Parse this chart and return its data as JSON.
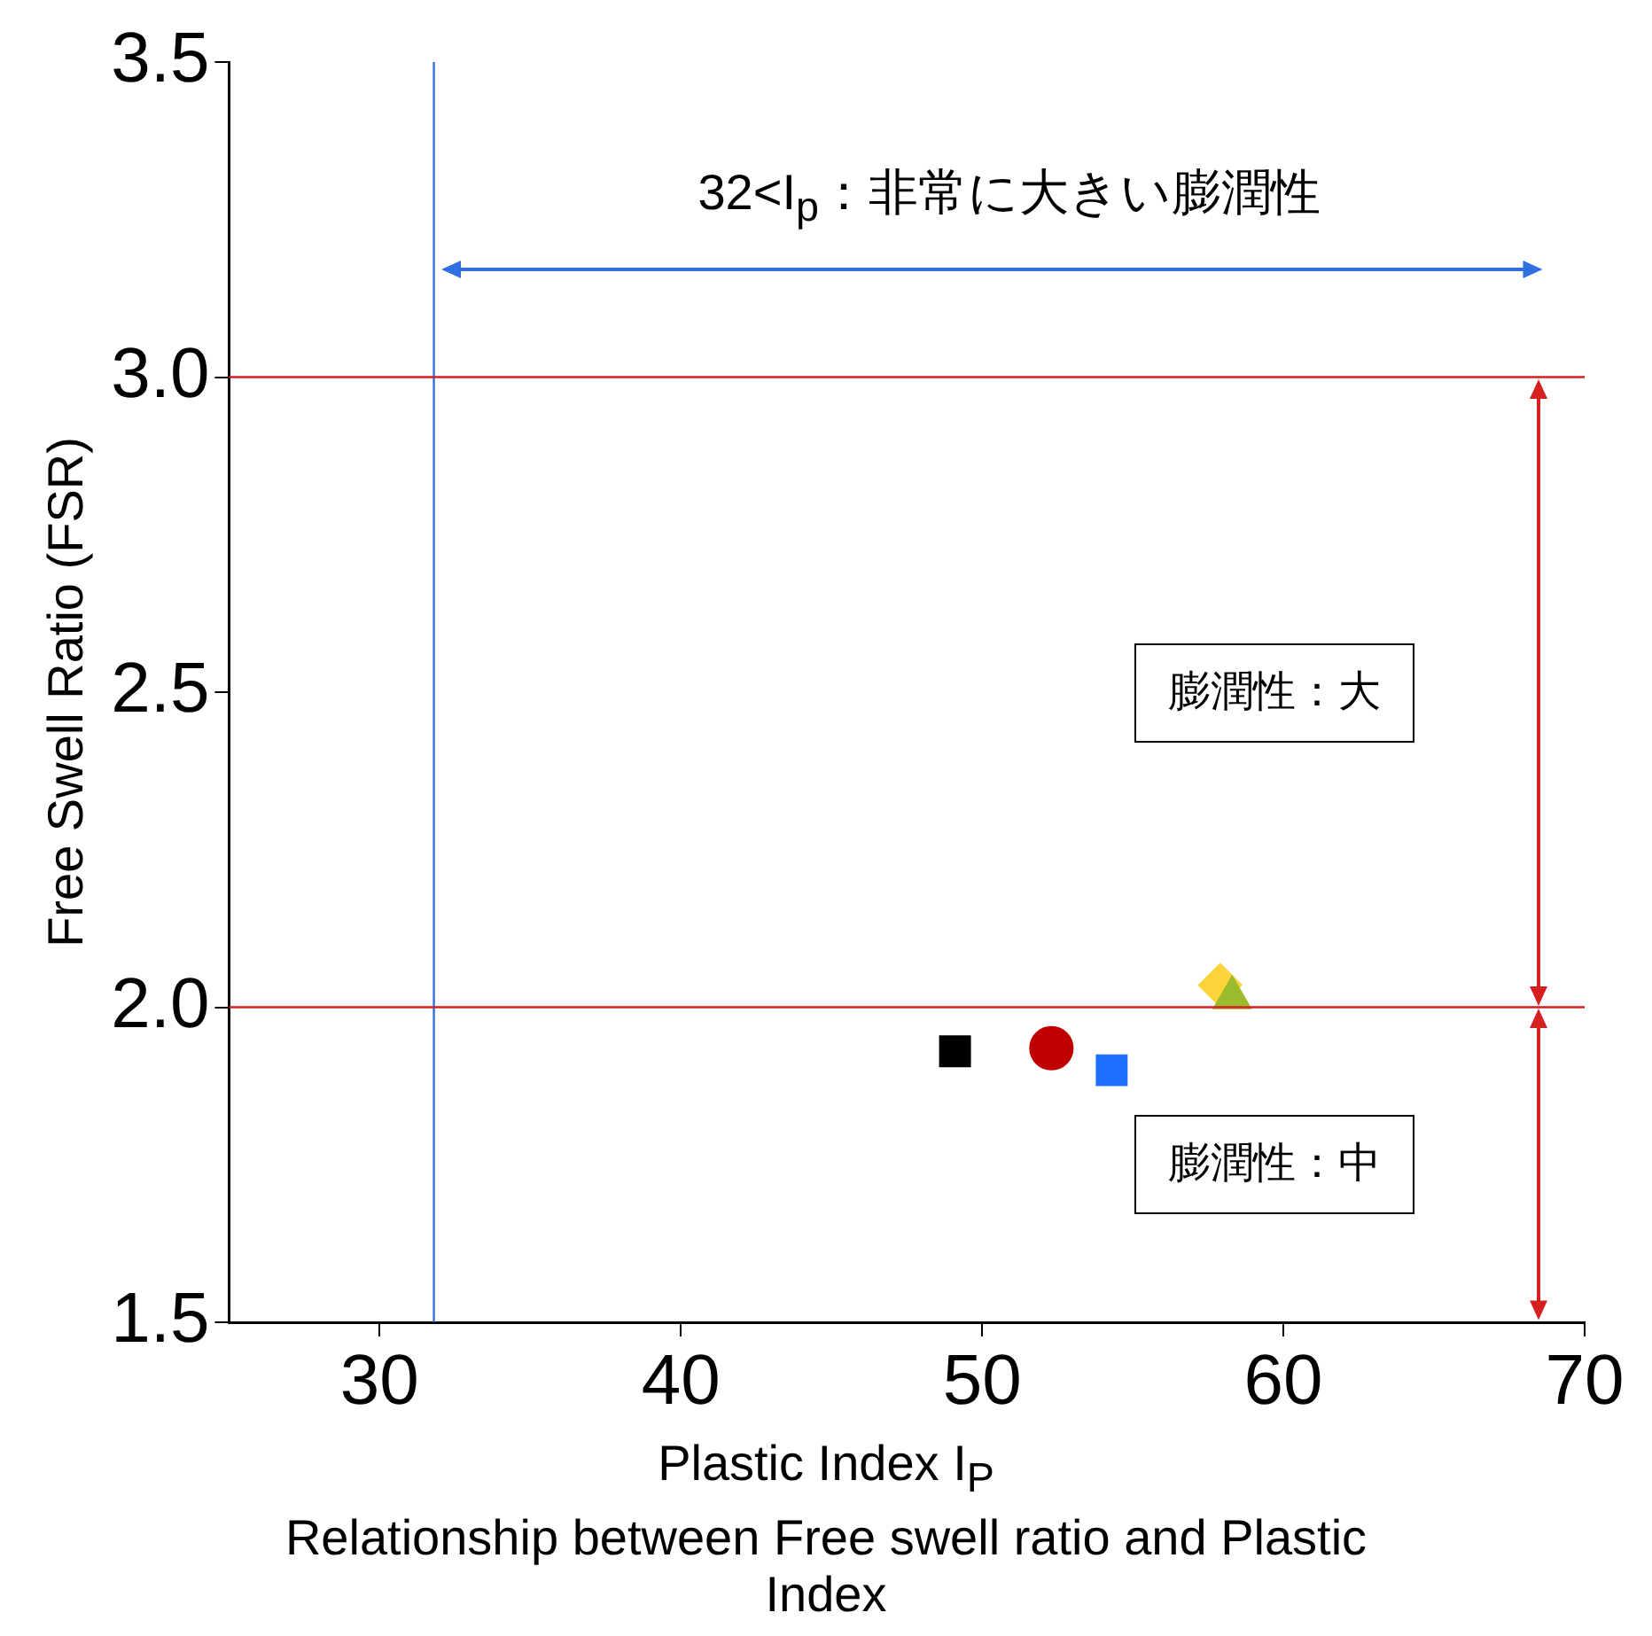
{
  "chart_data": {
    "type": "scatter",
    "xlabel": "Plastic Index I$_{P}$",
    "ylabel": "Free Swell Ratio (FSR)",
    "xlim": [
      25,
      70
    ],
    "xticks": [
      30,
      40,
      50,
      60,
      70
    ],
    "ylim": [
      1.5,
      3.5
    ],
    "yticks": [
      1.5,
      {
        "value": 2,
        "label": "2.0"
      },
      2.5,
      {
        "value": 3,
        "label": "3.0"
      },
      3.5
    ],
    "grid": false,
    "series": [
      {
        "color": "#000000",
        "marker": "square",
        "x": [
          49.1
        ],
        "values": [
          1.93
        ]
      },
      {
        "color": "#c00000",
        "marker": "circle",
        "x": [
          52.3
        ],
        "values": [
          1.935
        ]
      },
      {
        "color": "#1f6fff",
        "marker": "square",
        "x": [
          54.3
        ],
        "values": [
          1.9
        ]
      },
      {
        "color": "#ffd43b",
        "marker": "diamond",
        "x": [
          57.9
        ],
        "values": [
          2.035
        ]
      },
      {
        "color": "#9bbb2c",
        "marker": "triangle",
        "x": [
          58.3
        ],
        "values": [
          2.015
        ]
      }
    ],
    "ref_lines": [
      {
        "axis": "x",
        "value": 31.8,
        "color": "#2f6fe0"
      },
      {
        "axis": "y",
        "value": 3.0,
        "color": "#d42020"
      },
      {
        "axis": "y",
        "value": 2.0,
        "color": "#d42020"
      }
    ],
    "annotations": [
      "32<I$_{p}$：非常に大きい膨潤性",
      "膨潤性：大",
      "膨潤性：中",
      "Relationship between Free swell ratio and Plastic Index"
    ]
  }
}
